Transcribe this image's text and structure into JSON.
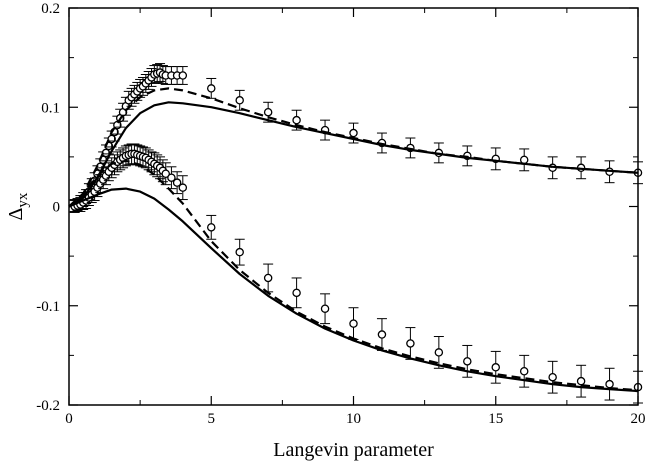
{
  "chart_data": {
    "type": "scatter",
    "title": "",
    "xlabel": "Langevin parameter",
    "ylabel_main": "Δ",
    "ylabel_sub": "yx",
    "xlim": [
      0,
      20
    ],
    "ylim": [
      -0.2,
      0.2
    ],
    "xticks": [
      0,
      5,
      10,
      15,
      20
    ],
    "xtick_labels": [
      "0",
      "5",
      "10",
      "15",
      "20"
    ],
    "yticks": [
      0.2,
      0.1,
      0,
      -0.1,
      -0.2
    ],
    "ytick_labels": [
      "0.2",
      "0.1",
      "0",
      "-0.1",
      "-0.2"
    ],
    "grid": false,
    "legend": "none",
    "series": [
      {
        "kind": "points",
        "x": [
          0.2,
          0.3,
          0.4,
          0.5,
          0.6,
          0.7,
          0.8,
          0.9,
          1.0,
          1.1,
          1.2,
          1.3,
          1.4,
          1.5,
          1.6,
          1.7,
          1.8,
          1.9,
          2.0,
          2.1,
          2.2,
          2.3,
          2.4,
          2.5,
          2.6,
          2.7,
          2.8,
          2.9,
          3.0,
          3.1,
          3.2,
          3.3,
          3.4,
          3.6,
          3.8,
          4.0,
          5,
          6,
          7,
          8,
          9,
          10,
          11,
          12,
          13,
          14,
          15,
          16,
          17,
          18,
          19,
          20
        ],
        "y": [
          0.001,
          0.002,
          0.004,
          0.007,
          0.01,
          0.015,
          0.02,
          0.026,
          0.033,
          0.04,
          0.047,
          0.054,
          0.061,
          0.068,
          0.075,
          0.082,
          0.089,
          0.095,
          0.101,
          0.107,
          0.11,
          0.113,
          0.116,
          0.119,
          0.121,
          0.124,
          0.127,
          0.13,
          0.133,
          0.134,
          0.135,
          0.133,
          0.132,
          0.132,
          0.132,
          0.132,
          0.119,
          0.107,
          0.095,
          0.087,
          0.077,
          0.074,
          0.064,
          0.059,
          0.054,
          0.051,
          0.048,
          0.047,
          0.039,
          0.039,
          0.035,
          0.034
        ],
        "err": [
          0.006,
          0.006,
          0.007,
          0.007,
          0.007,
          0.008,
          0.008,
          0.008,
          0.008,
          0.008,
          0.008,
          0.008,
          0.008,
          0.008,
          0.009,
          0.009,
          0.009,
          0.009,
          0.009,
          0.009,
          0.009,
          0.009,
          0.009,
          0.009,
          0.009,
          0.009,
          0.009,
          0.009,
          0.009,
          0.009,
          0.009,
          0.009,
          0.009,
          0.009,
          0.009,
          0.009,
          0.01,
          0.01,
          0.01,
          0.01,
          0.01,
          0.01,
          0.01,
          0.01,
          0.01,
          0.01,
          0.011,
          0.011,
          0.011,
          0.011,
          0.011,
          0.011
        ]
      },
      {
        "kind": "points",
        "x": [
          0.2,
          0.3,
          0.4,
          0.5,
          0.6,
          0.7,
          0.8,
          0.9,
          1.0,
          1.1,
          1.2,
          1.3,
          1.4,
          1.5,
          1.6,
          1.7,
          1.8,
          1.9,
          2.0,
          2.1,
          2.2,
          2.3,
          2.4,
          2.5,
          2.6,
          2.7,
          2.8,
          2.9,
          3.0,
          3.1,
          3.2,
          3.3,
          3.4,
          3.6,
          3.8,
          4.0,
          5,
          6,
          7,
          8,
          9,
          10,
          11,
          12,
          13,
          14,
          15,
          16,
          17,
          18,
          19,
          20
        ],
        "y": [
          0.0,
          0.001,
          0.002,
          0.004,
          0.006,
          0.009,
          0.012,
          0.015,
          0.019,
          0.023,
          0.027,
          0.031,
          0.035,
          0.039,
          0.042,
          0.045,
          0.047,
          0.049,
          0.051,
          0.052,
          0.053,
          0.053,
          0.052,
          0.051,
          0.05,
          0.049,
          0.047,
          0.045,
          0.043,
          0.041,
          0.039,
          0.036,
          0.033,
          0.029,
          0.024,
          0.019,
          -0.021,
          -0.046,
          -0.072,
          -0.087,
          -0.103,
          -0.118,
          -0.129,
          -0.138,
          -0.147,
          -0.156,
          -0.162,
          -0.166,
          -0.172,
          -0.176,
          -0.179,
          -0.182
        ],
        "err": [
          0.006,
          0.006,
          0.007,
          0.007,
          0.008,
          0.008,
          0.008,
          0.009,
          0.009,
          0.009,
          0.009,
          0.009,
          0.009,
          0.01,
          0.01,
          0.01,
          0.01,
          0.01,
          0.01,
          0.01,
          0.01,
          0.01,
          0.01,
          0.01,
          0.01,
          0.01,
          0.01,
          0.01,
          0.011,
          0.011,
          0.011,
          0.011,
          0.011,
          0.011,
          0.011,
          0.012,
          0.012,
          0.013,
          0.014,
          0.015,
          0.015,
          0.016,
          0.016,
          0.016,
          0.016,
          0.016,
          0.016,
          0.016,
          0.016,
          0.016,
          0.016,
          0.016
        ]
      },
      {
        "kind": "line",
        "style": "dashed",
        "x": [
          0,
          0.5,
          1.0,
          1.5,
          2.0,
          2.5,
          3.0,
          3.5,
          4.0,
          5,
          6,
          7,
          8,
          9,
          10,
          11,
          12,
          13,
          14,
          15,
          16,
          17,
          18,
          19,
          20
        ],
        "y": [
          0,
          0.013,
          0.041,
          0.075,
          0.097,
          0.11,
          0.117,
          0.119,
          0.117,
          0.109,
          0.099,
          0.09,
          0.082,
          0.075,
          0.069,
          0.063,
          0.058,
          0.053,
          0.05,
          0.046,
          0.043,
          0.04,
          0.038,
          0.036,
          0.034
        ]
      },
      {
        "kind": "line",
        "style": "solid",
        "x": [
          0,
          0.5,
          1.0,
          1.5,
          2.0,
          2.5,
          3.0,
          3.5,
          4.0,
          5,
          6,
          7,
          8,
          9,
          10,
          11,
          12,
          13,
          14,
          15,
          16,
          17,
          18,
          19,
          20
        ],
        "y": [
          0,
          0.009,
          0.029,
          0.056,
          0.079,
          0.094,
          0.102,
          0.105,
          0.104,
          0.1,
          0.094,
          0.087,
          0.08,
          0.074,
          0.068,
          0.062,
          0.057,
          0.053,
          0.049,
          0.046,
          0.043,
          0.04,
          0.038,
          0.036,
          0.034
        ]
      },
      {
        "kind": "line",
        "style": "dashed",
        "x": [
          0,
          0.5,
          1.0,
          1.5,
          2.0,
          2.5,
          3.0,
          3.5,
          4.0,
          5,
          6,
          7,
          8,
          9,
          10,
          11,
          12,
          13,
          14,
          15,
          16,
          17,
          18,
          19,
          20
        ],
        "y": [
          0,
          0.012,
          0.031,
          0.043,
          0.046,
          0.042,
          0.032,
          0.018,
          0.003,
          -0.035,
          -0.064,
          -0.087,
          -0.106,
          -0.121,
          -0.133,
          -0.143,
          -0.151,
          -0.158,
          -0.164,
          -0.169,
          -0.173,
          -0.177,
          -0.18,
          -0.183,
          -0.185
        ]
      },
      {
        "kind": "line",
        "style": "solid",
        "x": [
          0,
          0.5,
          1.0,
          1.5,
          2.0,
          2.5,
          3.0,
          3.5,
          4.0,
          5,
          6,
          7,
          8,
          9,
          10,
          11,
          12,
          13,
          14,
          15,
          16,
          17,
          18,
          19,
          20
        ],
        "y": [
          0,
          0.006,
          0.012,
          0.017,
          0.018,
          0.015,
          0.008,
          -0.003,
          -0.015,
          -0.042,
          -0.068,
          -0.09,
          -0.108,
          -0.123,
          -0.135,
          -0.145,
          -0.153,
          -0.16,
          -0.166,
          -0.171,
          -0.175,
          -0.179,
          -0.182,
          -0.184,
          -0.186
        ]
      }
    ]
  }
}
